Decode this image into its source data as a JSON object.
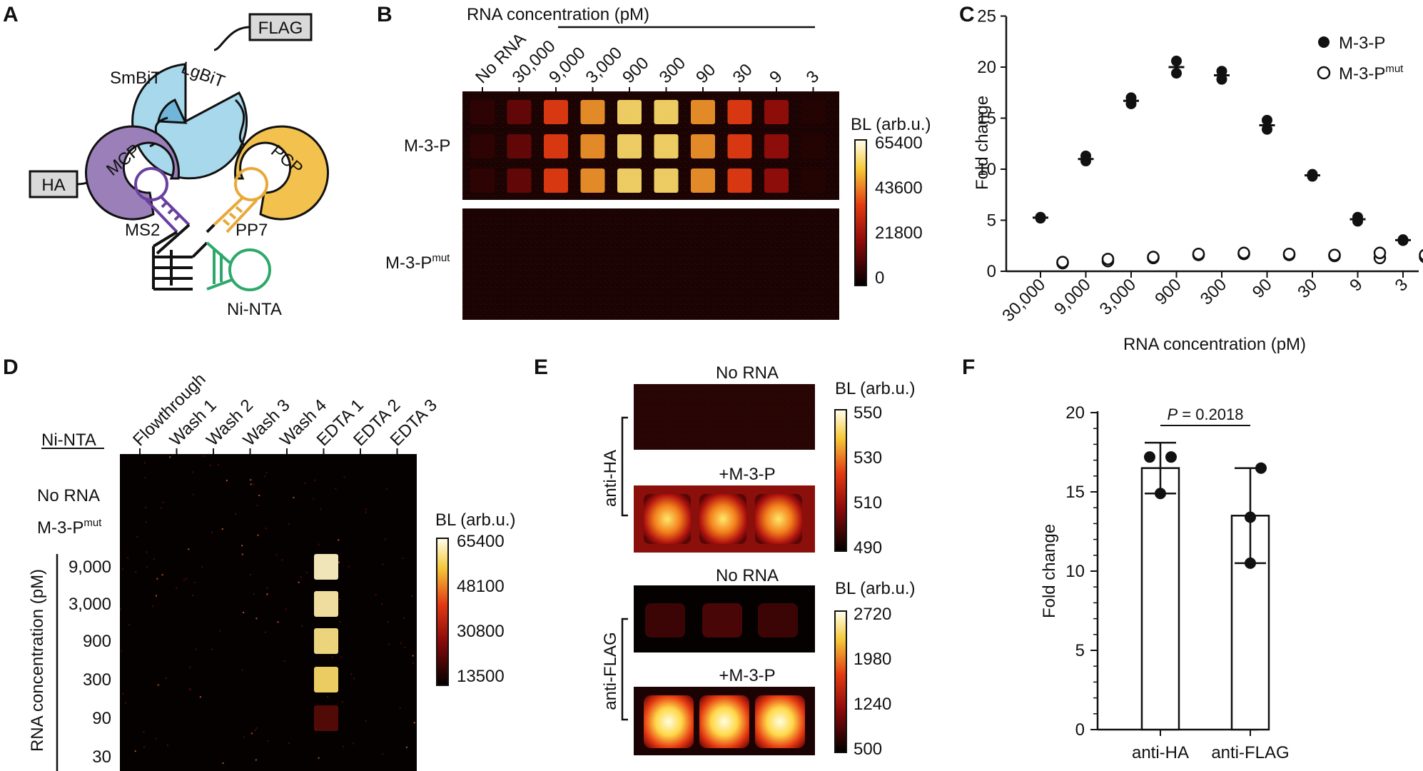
{
  "panels": {
    "A": "A",
    "B": "B",
    "C": "C",
    "D": "D",
    "E": "E",
    "F": "F"
  },
  "panelA": {
    "flag": "FLAG",
    "lgbit": "LgBiT",
    "smbit": "SmBiT",
    "ha": "HA",
    "mcp": "MCP",
    "pcp": "PCP",
    "ms2": "MS2",
    "pp7": "PP7",
    "ninta": "Ni-NTA",
    "colors": {
      "lgbit": "#a7d8ec",
      "mcp": "#9a7fb8",
      "ms2_rna": "#6b3fa0",
      "pcp": "#f2c14e",
      "pp7_rna": "#e8a93a",
      "ninta_rna": "#2ea86a",
      "tag_box": "#d9d9d9"
    }
  },
  "panelB": {
    "title": "RNA concentration (pM)",
    "columns": [
      "No RNA",
      "30,000",
      "9,000",
      "3,000",
      "900",
      "300",
      "90",
      "30",
      "9",
      "3"
    ],
    "row_wt": "M-3-P",
    "row_mut_main": "M-3-P",
    "row_mut_sup": "mut",
    "cbar_title": "BL (arb.u.)",
    "cbar_ticks": [
      "65400",
      "43600",
      "21800",
      "0"
    ],
    "intensity_wt": [
      0.1,
      0.22,
      0.55,
      0.7,
      0.85,
      0.85,
      0.7,
      0.55,
      0.32,
      0.08
    ]
  },
  "panelC": {
    "ylabel": "Fold change",
    "xlabel": "RNA concentration (pM)",
    "yticks": [
      "0",
      "5",
      "10",
      "15",
      "20",
      "25"
    ],
    "legend_filled": "M-3-P",
    "legend_open_main": "M-3-P",
    "legend_open_sup": "mut"
  },
  "chart_data": [
    {
      "type": "scatter",
      "xlabel": "RNA concentration (pM)",
      "ylabel": "Fold change",
      "ylim": [
        0,
        25
      ],
      "categories": [
        "30,000",
        "9,000",
        "3,000",
        "900",
        "300",
        "90",
        "30",
        "9",
        "3"
      ],
      "series": [
        {
          "name": "M-3-P",
          "marker": "filled",
          "values": [
            [
              5.2,
              5.3
            ],
            [
              10.8,
              11.3
            ],
            [
              16.4,
              17.0
            ],
            [
              19.4,
              20.6
            ],
            [
              18.8,
              19.6
            ],
            [
              13.9,
              14.8
            ],
            [
              9.3,
              9.5
            ],
            [
              4.9,
              5.3
            ],
            [
              3.0,
              3.1
            ]
          ],
          "mean": [
            5.25,
            11.0,
            16.7,
            20.0,
            19.2,
            14.3,
            9.4,
            5.1,
            3.05
          ]
        },
        {
          "name": "M-3-P mut",
          "marker": "open",
          "values": [
            [
              0.8,
              0.9
            ],
            [
              1.0,
              1.2
            ],
            [
              1.3,
              1.4
            ],
            [
              1.6,
              1.7
            ],
            [
              1.7,
              1.8
            ],
            [
              1.6,
              1.7
            ],
            [
              1.5,
              1.6
            ],
            [
              1.3,
              1.8
            ],
            [
              1.4,
              1.6
            ]
          ]
        }
      ]
    },
    {
      "type": "bar",
      "ylabel": "Fold change",
      "ylim": [
        0,
        20
      ],
      "categories": [
        "anti-HA",
        "anti-FLAG"
      ],
      "values": [
        16.5,
        13.5
      ],
      "error": [
        [
          14.9,
          18.1
        ],
        [
          10.5,
          16.5
        ]
      ],
      "points": [
        [
          17.2,
          17.2,
          14.9
        ],
        [
          16.5,
          13.4,
          10.5
        ]
      ],
      "annotation": "P = 0.2018"
    }
  ],
  "panelD": {
    "title": "Ni-NTA",
    "columns": [
      "Flowthrough",
      "Wash 1",
      "Wash 2",
      "Wash 3",
      "Wash 4",
      "EDTA 1",
      "EDTA 2",
      "EDTA 3"
    ],
    "rows": [
      "No RNA",
      "9,000",
      "3,000",
      "900",
      "300",
      "90",
      "30"
    ],
    "row_mut_main": "M-3-P",
    "row_mut_sup": "mut",
    "ylabel": "RNA concentration (pM)",
    "cbar_title": "BL (arb.u.)",
    "cbar_ticks": [
      "65400",
      "48100",
      "30800",
      "13500"
    ]
  },
  "panelE": {
    "no_rna": "No RNA",
    "plus": "+M-3-P",
    "anti_ha": "anti-HA",
    "anti_flag": "anti-FLAG",
    "cbar_title": "BL (arb.u.)",
    "cbar1_ticks": [
      "550",
      "530",
      "510",
      "490"
    ],
    "cbar2_ticks": [
      "2720",
      "1980",
      "1240",
      "500"
    ]
  },
  "panelF": {
    "ylabel": "Fold change",
    "yticks": [
      "0",
      "5",
      "10",
      "15",
      "20"
    ],
    "p_italic": "P",
    "p_rest": " = 0.2018",
    "categories": [
      "anti-HA",
      "anti-FLAG"
    ]
  }
}
